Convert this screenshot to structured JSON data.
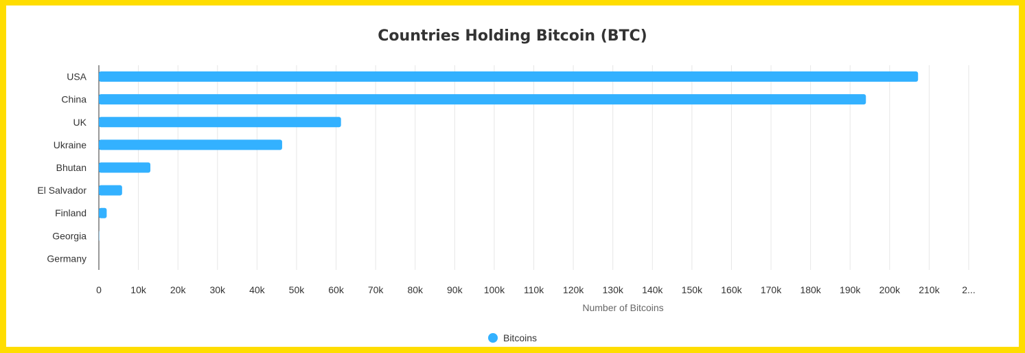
{
  "chart_data": {
    "type": "bar",
    "orientation": "horizontal",
    "title": "Countries Holding Bitcoin (BTC)",
    "xlabel": "Number of Bitcoins",
    "ylabel": "",
    "categories": [
      "USA",
      "China",
      "UK",
      "Ukraine",
      "Bhutan",
      "El Salvador",
      "Finland",
      "Georgia",
      "Germany"
    ],
    "series": [
      {
        "name": "Bitcoins",
        "values": [
          207189,
          194000,
          61245,
          46351,
          13029,
          5875,
          1981,
          66,
          0
        ],
        "color": "#33B1FF"
      }
    ],
    "xlim": [
      0,
      220000
    ],
    "x_ticks": [
      "0",
      "10k",
      "20k",
      "30k",
      "40k",
      "50k",
      "60k",
      "70k",
      "80k",
      "90k",
      "100k",
      "110k",
      "120k",
      "130k",
      "140k",
      "150k",
      "160k",
      "170k",
      "180k",
      "190k",
      "200k",
      "210k",
      "2..."
    ],
    "grid": "vertical",
    "legend": "bottom-center"
  },
  "colors": {
    "frame": "#FFDD00",
    "bar": "#33B1FF",
    "grid": "#E6E6E6",
    "axis": "#333333",
    "text": "#333333",
    "axis_title": "#666666"
  }
}
